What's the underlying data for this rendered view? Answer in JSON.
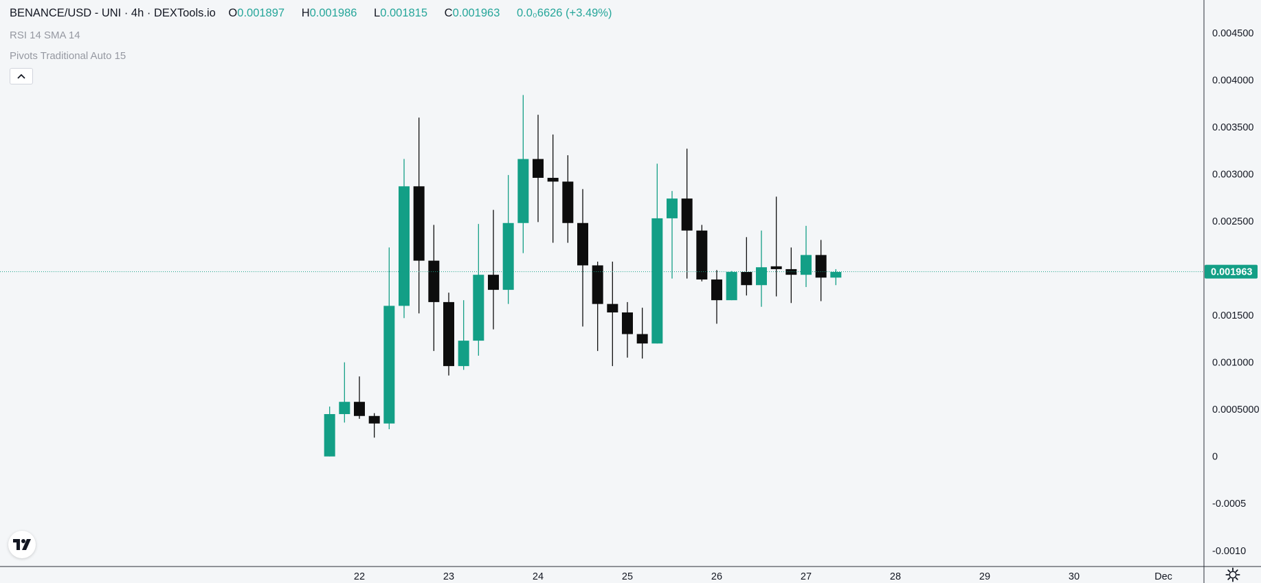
{
  "header": {
    "symbol_line": "BENANCE/USD - UNI · 4h · DEXTools.io",
    "ohlc": {
      "o_label": "O",
      "o_value": "0.001897",
      "h_label": "H",
      "h_value": "0.001986",
      "l_label": "L",
      "l_value": "0.001815",
      "c_label": "C",
      "c_value": "0.001963",
      "change": "0.0₀6626 (+3.49%)"
    }
  },
  "indicators": [
    "RSI 14 SMA 14",
    "Pivots Traditional Auto 15"
  ],
  "colors": {
    "background": "#f4f6f8",
    "up": "#139f86",
    "down": "#0d0d0d",
    "grid": "#e8ebef",
    "axis_line": "#2a2e39",
    "price_badge": "#139f86"
  },
  "icons": {
    "collapse": "chevron-up-icon",
    "logo": "tradingview-logo-icon",
    "settings": "gear-icon"
  },
  "chart_data": {
    "type": "candlestick",
    "title": "BENANCE/USD - UNI · 4h · DEXTools.io",
    "y_axis": {
      "ticks": [
        {
          "value": 0.0045,
          "label": "0.004500"
        },
        {
          "value": 0.004,
          "label": "0.004000"
        },
        {
          "value": 0.0035,
          "label": "0.003500"
        },
        {
          "value": 0.003,
          "label": "0.003000"
        },
        {
          "value": 0.0025,
          "label": "0.002500"
        },
        {
          "value": 0.0015,
          "label": "0.001500"
        },
        {
          "value": 0.001,
          "label": "0.001000"
        },
        {
          "value": 0.0005,
          "label": "0.0005000"
        },
        {
          "value": 0,
          "label": "0"
        },
        {
          "value": -0.0005,
          "label": "-0.0005"
        },
        {
          "value": -0.001,
          "label": "-0.0010"
        }
      ],
      "range": [
        -0.00105,
        0.00485
      ]
    },
    "x_axis": {
      "ticks": [
        {
          "day": 22,
          "label": "22"
        },
        {
          "day": 23,
          "label": "23"
        },
        {
          "day": 24,
          "label": "24"
        },
        {
          "day": 25,
          "label": "25"
        },
        {
          "day": 26,
          "label": "26"
        },
        {
          "day": 27,
          "label": "27"
        },
        {
          "day": 28,
          "label": "28"
        },
        {
          "day": 29,
          "label": "29"
        },
        {
          "day": 30,
          "label": "30"
        },
        {
          "day": 31,
          "label": "Dec"
        }
      ],
      "range": [
        18.2,
        32.5
      ]
    },
    "last_price": {
      "value": 0.001963,
      "label": "0.001963"
    },
    "candles": [
      {
        "t": 21.6667,
        "o": 0.0,
        "h": 0.00053,
        "l": 0.0,
        "c": 0.00045
      },
      {
        "t": 21.8333,
        "o": 0.00045,
        "h": 0.001,
        "l": 0.00036,
        "c": 0.00058
      },
      {
        "t": 22.0,
        "o": 0.00058,
        "h": 0.00085,
        "l": 0.0004,
        "c": 0.00043
      },
      {
        "t": 22.1667,
        "o": 0.00043,
        "h": 0.00046,
        "l": 0.0002,
        "c": 0.00035
      },
      {
        "t": 22.3333,
        "o": 0.00035,
        "h": 0.00222,
        "l": 0.00029,
        "c": 0.0016
      },
      {
        "t": 22.5,
        "o": 0.0016,
        "h": 0.00316,
        "l": 0.00147,
        "c": 0.00287
      },
      {
        "t": 22.6667,
        "o": 0.00287,
        "h": 0.0036,
        "l": 0.00152,
        "c": 0.00208
      },
      {
        "t": 22.8333,
        "o": 0.00208,
        "h": 0.00246,
        "l": 0.00112,
        "c": 0.00164
      },
      {
        "t": 23.0,
        "o": 0.00164,
        "h": 0.00174,
        "l": 0.00086,
        "c": 0.00096
      },
      {
        "t": 23.1667,
        "o": 0.00096,
        "h": 0.00166,
        "l": 0.00092,
        "c": 0.00123
      },
      {
        "t": 23.3333,
        "o": 0.00123,
        "h": 0.00247,
        "l": 0.00107,
        "c": 0.00193
      },
      {
        "t": 23.5,
        "o": 0.00193,
        "h": 0.00262,
        "l": 0.00135,
        "c": 0.00177
      },
      {
        "t": 23.6667,
        "o": 0.00177,
        "h": 0.00299,
        "l": 0.00162,
        "c": 0.00248
      },
      {
        "t": 23.8333,
        "o": 0.00248,
        "h": 0.00384,
        "l": 0.00216,
        "c": 0.00316
      },
      {
        "t": 24.0,
        "o": 0.00316,
        "h": 0.00363,
        "l": 0.00249,
        "c": 0.00296
      },
      {
        "t": 24.1667,
        "o": 0.00296,
        "h": 0.00342,
        "l": 0.00227,
        "c": 0.00292
      },
      {
        "t": 24.3333,
        "o": 0.00292,
        "h": 0.0032,
        "l": 0.00227,
        "c": 0.00248
      },
      {
        "t": 24.5,
        "o": 0.00248,
        "h": 0.00284,
        "l": 0.00138,
        "c": 0.00203
      },
      {
        "t": 24.6667,
        "o": 0.00203,
        "h": 0.00207,
        "l": 0.00112,
        "c": 0.00162
      },
      {
        "t": 24.8333,
        "o": 0.00162,
        "h": 0.00207,
        "l": 0.00096,
        "c": 0.00153
      },
      {
        "t": 25.0,
        "o": 0.00153,
        "h": 0.00164,
        "l": 0.00105,
        "c": 0.0013
      },
      {
        "t": 25.1667,
        "o": 0.0013,
        "h": 0.00158,
        "l": 0.00104,
        "c": 0.0012
      },
      {
        "t": 25.3333,
        "o": 0.0012,
        "h": 0.00311,
        "l": 0.0012,
        "c": 0.00253
      },
      {
        "t": 25.5,
        "o": 0.00253,
        "h": 0.00282,
        "l": 0.00189,
        "c": 0.00274
      },
      {
        "t": 25.6667,
        "o": 0.00274,
        "h": 0.00327,
        "l": 0.00189,
        "c": 0.0024
      },
      {
        "t": 25.8333,
        "o": 0.0024,
        "h": 0.00246,
        "l": 0.00186,
        "c": 0.00188
      },
      {
        "t": 26.0,
        "o": 0.00188,
        "h": 0.00198,
        "l": 0.00141,
        "c": 0.00166
      },
      {
        "t": 26.1667,
        "o": 0.00166,
        "h": 0.00197,
        "l": 0.00166,
        "c": 0.00196
      },
      {
        "t": 26.3333,
        "o": 0.00196,
        "h": 0.00233,
        "l": 0.00171,
        "c": 0.00182
      },
      {
        "t": 26.5,
        "o": 0.00182,
        "h": 0.0024,
        "l": 0.00159,
        "c": 0.00201
      },
      {
        "t": 26.6667,
        "o": 0.00202,
        "h": 0.00276,
        "l": 0.0017,
        "c": 0.00199
      },
      {
        "t": 26.8333,
        "o": 0.00199,
        "h": 0.00222,
        "l": 0.00163,
        "c": 0.00193
      },
      {
        "t": 27.0,
        "o": 0.00193,
        "h": 0.00245,
        "l": 0.0018,
        "c": 0.00214
      },
      {
        "t": 27.1667,
        "o": 0.00214,
        "h": 0.0023,
        "l": 0.00165,
        "c": 0.0019
      },
      {
        "t": 27.3333,
        "o": 0.0019,
        "h": 0.00199,
        "l": 0.00182,
        "c": 0.00196
      }
    ]
  }
}
